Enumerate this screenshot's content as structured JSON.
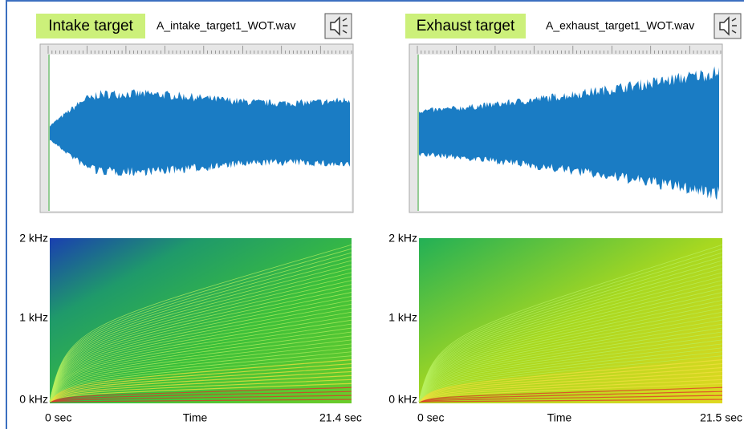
{
  "panels": [
    {
      "title": "Intake target",
      "file": "A_intake_target1_WOT.wav",
      "freq_labels": [
        "2 kHz",
        "1 kHz",
        "0 kHz"
      ],
      "time_labels": [
        "0 sec",
        "Time",
        "21.4 sec"
      ]
    },
    {
      "title": "Exhaust target",
      "file": "A_exhaust_target1_WOT.wav",
      "freq_labels": [
        "2 kHz",
        "1 kHz",
        "0 kHz"
      ],
      "time_labels": [
        "0 sec",
        "Time",
        "21.5 sec"
      ]
    }
  ]
}
